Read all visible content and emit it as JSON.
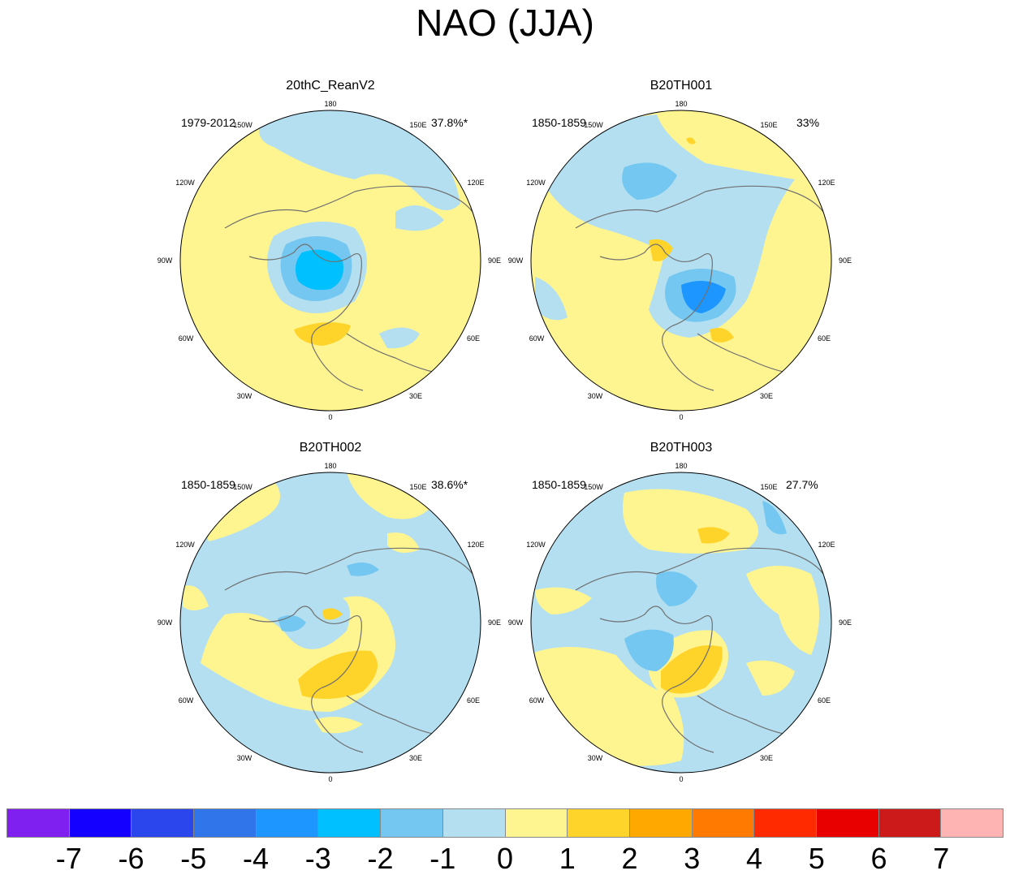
{
  "title": "NAO (JJA)",
  "chart_data": {
    "type": "heatmap",
    "projection": "north polar stereographic",
    "panels": [
      {
        "title": "20thC_ReanV2",
        "period": "1979-2012",
        "variance_explained": "37.8%*"
      },
      {
        "title": "B20TH001",
        "period": "1850-1859",
        "variance_explained": "33%"
      },
      {
        "title": "B20TH002",
        "period": "1850-1859",
        "variance_explained": "38.6%*"
      },
      {
        "title": "B20TH003",
        "period": "1850-1859",
        "variance_explained": "27.7%"
      }
    ],
    "longitude_labels": [
      "180",
      "150E",
      "120E",
      "90E",
      "60E",
      "30E",
      "0",
      "30W",
      "60W",
      "90W",
      "120W",
      "150W"
    ],
    "colorbar": {
      "labels": [
        "-7",
        "-6",
        "-5",
        "-4",
        "-3",
        "-2",
        "-1",
        "0",
        "1",
        "2",
        "3",
        "4",
        "5",
        "6",
        "7"
      ],
      "colors": [
        "#8020f0",
        "#1400ff",
        "#2c46ee",
        "#3175ea",
        "#1e96ff",
        "#00c0ff",
        "#74c7f0",
        "#b3dff1",
        "#fff590",
        "#ffd42a",
        "#ffa800",
        "#ff7a00",
        "#ff2a00",
        "#e80000",
        "#cc1a1a",
        "#ffb4b4"
      ]
    }
  }
}
